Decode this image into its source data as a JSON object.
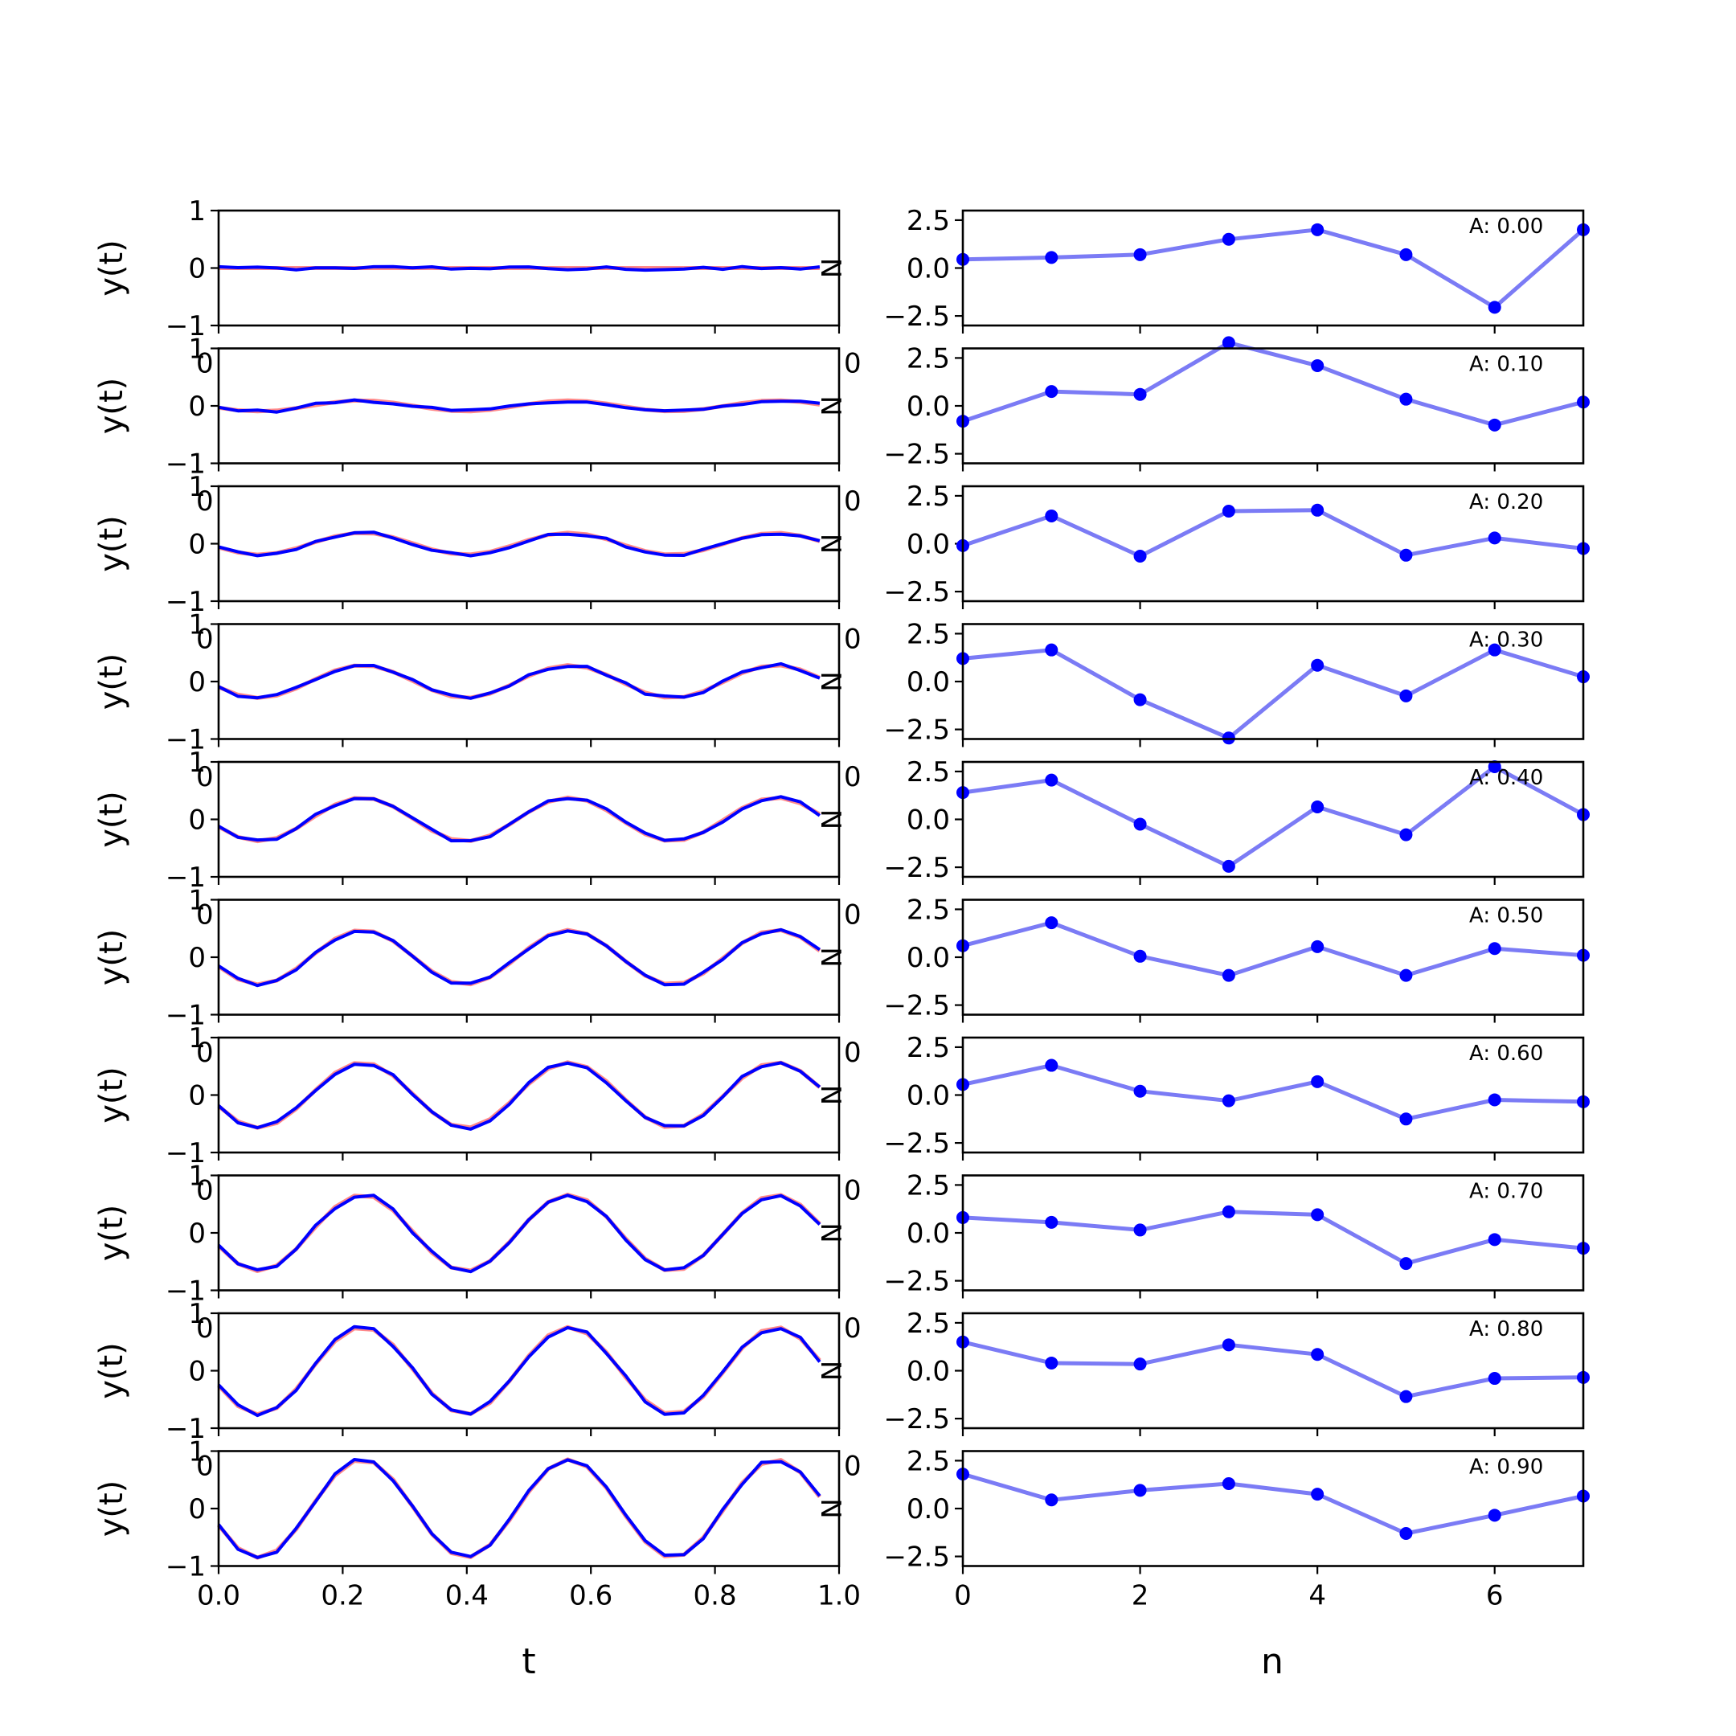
{
  "chart_data": {
    "type": "line",
    "layout": "10 rows x 2 columns of subplots",
    "left_column": {
      "description": "y(t) vs t for amplitudes A = 0.0..0.9; red = reference sine, blue = noisy signal",
      "xlabel": "t",
      "ylabel": "y(t)",
      "xlim": [
        0.0,
        1.0
      ],
      "ylim": [
        -1,
        1
      ],
      "xticks": [
        0.0,
        0.2,
        0.4,
        0.6,
        0.8,
        1.0
      ],
      "xtick_labels": [
        "0.0",
        "0.2",
        "0.4",
        "0.6",
        "0.8",
        "1.0"
      ],
      "yticks": [
        -1,
        0,
        1
      ],
      "ytick_labels": [
        "−1",
        "0",
        "1"
      ],
      "series_colors": {
        "reference": "#ff6b6b",
        "signal": "#0000ff"
      },
      "stray_overlay_labels": {
        "side_letter": "N",
        "corner_digit": "0"
      },
      "sample_interval": 0.03125,
      "samples_per_row": 32,
      "frequency_hz": 3,
      "amplitudes": [
        0.0,
        0.1,
        0.2,
        0.3,
        0.4,
        0.5,
        0.6,
        0.7,
        0.8,
        0.9
      ]
    },
    "right_column": {
      "description": "sequence values vs n, one panel per amplitude",
      "xlabel": "n",
      "xlim": [
        0,
        7
      ],
      "ylim": [
        -3,
        3
      ],
      "xticks": [
        0,
        2,
        4,
        6
      ],
      "xtick_labels": [
        "0",
        "2",
        "4",
        "6"
      ],
      "yticks": [
        2.5,
        0.0,
        -2.5
      ],
      "ytick_labels": [
        "2.5",
        "0.0",
        "−2.5"
      ],
      "line_color": "#7b7bf5",
      "marker_color": "#0000ff",
      "panels": [
        {
          "annotation": "A: 0.00",
          "x": [
            0,
            1,
            2,
            3,
            4,
            5,
            6,
            7
          ],
          "y": [
            0.45,
            0.55,
            0.7,
            1.5,
            2.0,
            0.7,
            -2.05,
            2.0
          ]
        },
        {
          "annotation": "A: 0.10",
          "x": [
            0,
            1,
            2,
            3,
            4,
            5,
            6,
            7
          ],
          "y": [
            -0.8,
            0.75,
            0.6,
            3.3,
            2.1,
            0.35,
            -1.0,
            0.2
          ]
        },
        {
          "annotation": "A: 0.20",
          "x": [
            0,
            1,
            2,
            3,
            4,
            5,
            6,
            7
          ],
          "y": [
            -0.1,
            1.45,
            -0.65,
            1.7,
            1.75,
            -0.6,
            0.3,
            -0.25
          ]
        },
        {
          "annotation": "A: 0.30",
          "x": [
            0,
            1,
            2,
            3,
            4,
            5,
            6,
            7
          ],
          "y": [
            1.2,
            1.65,
            -0.95,
            -2.95,
            0.85,
            -0.75,
            1.65,
            0.25
          ]
        },
        {
          "annotation": "A: 0.40",
          "x": [
            0,
            1,
            2,
            3,
            4,
            5,
            6,
            7
          ],
          "y": [
            1.4,
            2.05,
            -0.25,
            -2.45,
            0.65,
            -0.8,
            2.75,
            0.25
          ]
        },
        {
          "annotation": "A: 0.50",
          "x": [
            0,
            1,
            2,
            3,
            4,
            5,
            6,
            7
          ],
          "y": [
            0.6,
            1.8,
            0.05,
            -0.95,
            0.55,
            -0.95,
            0.45,
            0.1
          ]
        },
        {
          "annotation": "A: 0.60",
          "x": [
            0,
            1,
            2,
            3,
            4,
            5,
            6,
            7
          ],
          "y": [
            0.55,
            1.55,
            0.2,
            -0.3,
            0.7,
            -1.25,
            -0.25,
            -0.35
          ]
        },
        {
          "annotation": "A: 0.70",
          "x": [
            0,
            1,
            2,
            3,
            4,
            5,
            6,
            7
          ],
          "y": [
            0.8,
            0.55,
            0.15,
            1.1,
            0.95,
            -1.6,
            -0.35,
            -0.8
          ]
        },
        {
          "annotation": "A: 0.80",
          "x": [
            0,
            1,
            2,
            3,
            4,
            5,
            6,
            7
          ],
          "y": [
            1.5,
            0.4,
            0.35,
            1.35,
            0.85,
            -1.35,
            -0.4,
            -0.35
          ]
        },
        {
          "annotation": "A: 0.90",
          "x": [
            0,
            1,
            2,
            3,
            4,
            5,
            6,
            7
          ],
          "y": [
            1.8,
            0.45,
            0.95,
            1.3,
            0.75,
            -1.3,
            -0.35,
            0.65
          ]
        }
      ]
    }
  }
}
